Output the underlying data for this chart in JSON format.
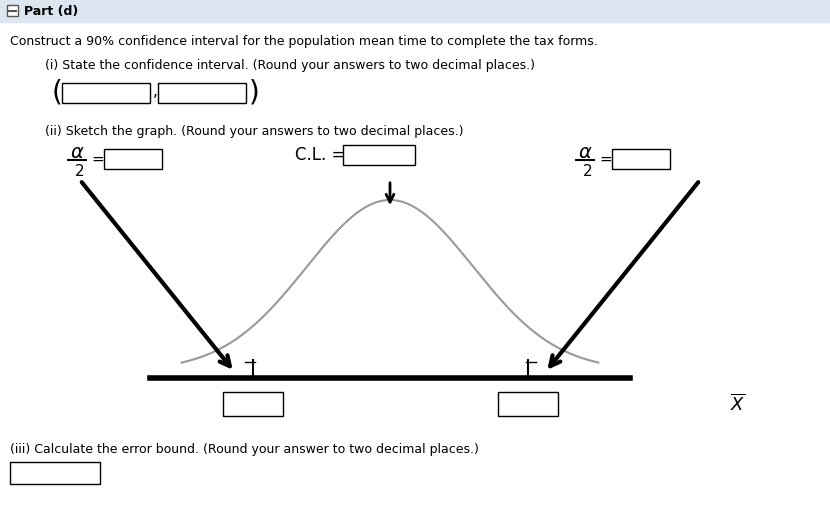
{
  "panel_color": "#ffffff",
  "header_color": "#dce6f1",
  "header_text": "Part (d)",
  "main_text": "Construct a 90% confidence interval for the population mean time to complete the tax forms.",
  "sub_text_i": "(i) State the confidence interval. (Round your answers to two decimal places.)",
  "sub_text_ii": "(ii) Sketch the graph. (Round your answers to two decimal places.)",
  "sub_text_iii": "(iii) Calculate the error bound. (Round your answer to two decimal places.)",
  "bell_color": "#999999",
  "axis_color": "#000000",
  "arrow_color": "#000000"
}
